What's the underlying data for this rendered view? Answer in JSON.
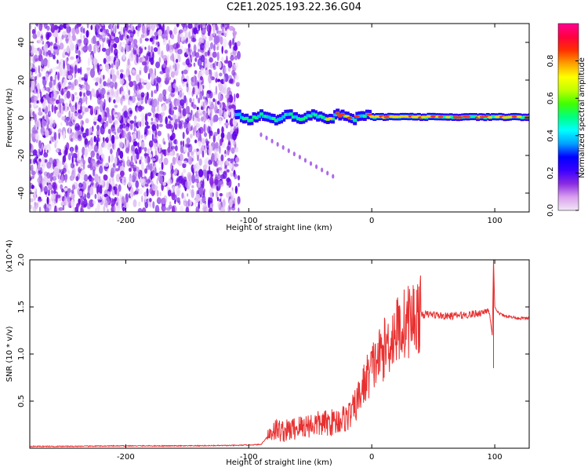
{
  "title": "C2E1.2025.193.22.36.G04",
  "chart_data": [
    {
      "type": "heatmap",
      "xlabel": "Height of straight line (km)",
      "ylabel": "Frequency (Hz)",
      "xlim": [
        -278,
        128
      ],
      "ylim": [
        -50,
        50
      ],
      "x_ticks": [
        -200,
        -100,
        0,
        100
      ],
      "x_tick_labels": [
        "-200",
        "-100",
        "0",
        "100"
      ],
      "y_ticks": [
        -40,
        -20,
        0,
        20,
        40
      ],
      "y_tick_labels": [
        "-40",
        "-20",
        "0",
        "20",
        "40"
      ],
      "colorbar": {
        "label": "Normalized spectral amplitude",
        "range": [
          0,
          1
        ],
        "ticks": [
          0.0,
          0.2,
          0.4,
          0.6,
          0.8
        ],
        "tick_labels": [
          "0.0",
          "0.2",
          "0.4",
          "0.6",
          "0.8"
        ],
        "colors": [
          "#f2e6f7",
          "#d9a0ee",
          "#8a2be2",
          "#3a00ff",
          "#0000ff",
          "#00a0ff",
          "#00ffff",
          "#00ff80",
          "#40ff00",
          "#c0ff00",
          "#ffff00",
          "#ffa000",
          "#ff3000",
          "#ff0040",
          "#ff0090"
        ]
      },
      "grid": false
    },
    {
      "type": "line",
      "xlabel": "Height of straight line (km)",
      "ylabel": "SNR (10 * v/v)",
      "y_scale_label": "(x10^4)",
      "xlim": [
        -278,
        128
      ],
      "ylim": [
        0,
        2.0
      ],
      "x_ticks": [
        -200,
        -100,
        0,
        100
      ],
      "x_tick_labels": [
        "-200",
        "-100",
        "0",
        "100"
      ],
      "y_ticks": [
        0.5,
        1.0,
        1.5,
        2.0
      ],
      "y_tick_labels": [
        "0.5",
        "1.0",
        "1.5",
        "2.0"
      ],
      "series": [
        {
          "color": "#e83030",
          "x": [
            -278,
            -250,
            -200,
            -150,
            -110,
            -100,
            -90,
            -85,
            -80,
            -70,
            -60,
            -50,
            -40,
            -30,
            -20,
            -15,
            -10,
            -5,
            0,
            5,
            10,
            15,
            20,
            25,
            30,
            35,
            40,
            50,
            60,
            70,
            80,
            90,
            95,
            98,
            99,
            100,
            102,
            105,
            110,
            115,
            120,
            128
          ],
          "y": [
            0.02,
            0.02,
            0.025,
            0.025,
            0.03,
            0.035,
            0.04,
            0.12,
            0.2,
            0.18,
            0.22,
            0.25,
            0.26,
            0.28,
            0.33,
            0.4,
            0.55,
            0.72,
            0.85,
            0.95,
            1.05,
            1.15,
            1.25,
            1.3,
            1.36,
            1.4,
            1.42,
            1.42,
            1.4,
            1.41,
            1.42,
            1.44,
            1.48,
            1.2,
            2.0,
            1.5,
            1.45,
            1.42,
            1.4,
            1.39,
            1.38,
            1.38
          ]
        }
      ],
      "grid": false
    }
  ]
}
